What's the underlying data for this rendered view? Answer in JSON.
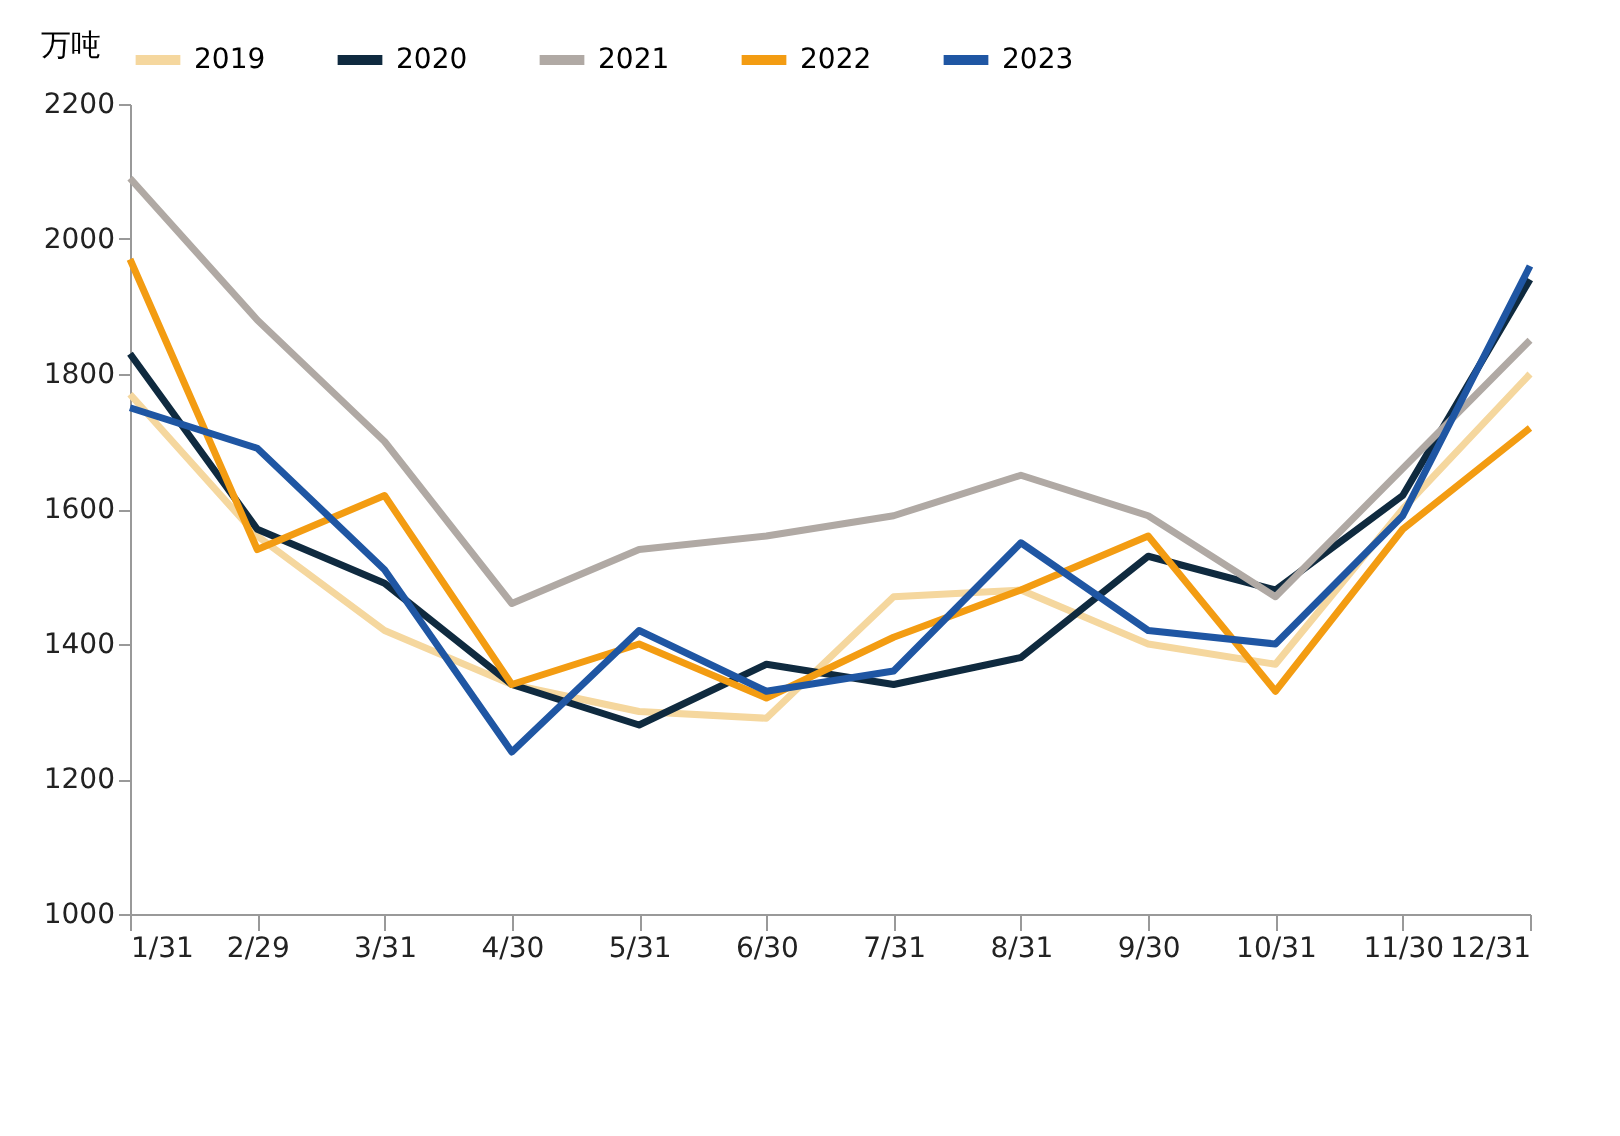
{
  "chart_data": {
    "type": "line",
    "ylabel": "万吨",
    "categories": [
      "1/31",
      "2/29",
      "3/31",
      "4/30",
      "5/31",
      "6/30",
      "7/31",
      "8/31",
      "9/30",
      "10/31",
      "11/30",
      "12/31"
    ],
    "series": [
      {
        "name": "2019",
        "color": "#f5d79e",
        "values": [
          1770,
          1560,
          1420,
          1340,
          1300,
          1290,
          1470,
          1480,
          1400,
          1370,
          1600,
          1800
        ]
      },
      {
        "name": "2020",
        "color": "#0f2a3f",
        "values": [
          1830,
          1570,
          1490,
          1340,
          1280,
          1370,
          1340,
          1380,
          1530,
          1480,
          1620,
          1940
        ]
      },
      {
        "name": "2021",
        "color": "#b0a9a4",
        "values": [
          2090,
          1880,
          1700,
          1460,
          1540,
          1560,
          1590,
          1650,
          1590,
          1470,
          1660,
          1850
        ]
      },
      {
        "name": "2022",
        "color": "#f39c12",
        "values": [
          1970,
          1540,
          1620,
          1340,
          1400,
          1320,
          1410,
          1480,
          1560,
          1330,
          1570,
          1720
        ]
      },
      {
        "name": "2023",
        "color": "#1f56a3",
        "values": [
          1750,
          1690,
          1510,
          1240,
          1420,
          1330,
          1360,
          1550,
          1420,
          1400,
          1590,
          1960
        ]
      }
    ],
    "ylim": [
      1000,
      2200
    ],
    "yticks": [
      1000,
      1200,
      1400,
      1600,
      1800,
      2000,
      2200
    ],
    "grid": false,
    "legend": "top",
    "marker": "none",
    "line_style": "solid"
  }
}
